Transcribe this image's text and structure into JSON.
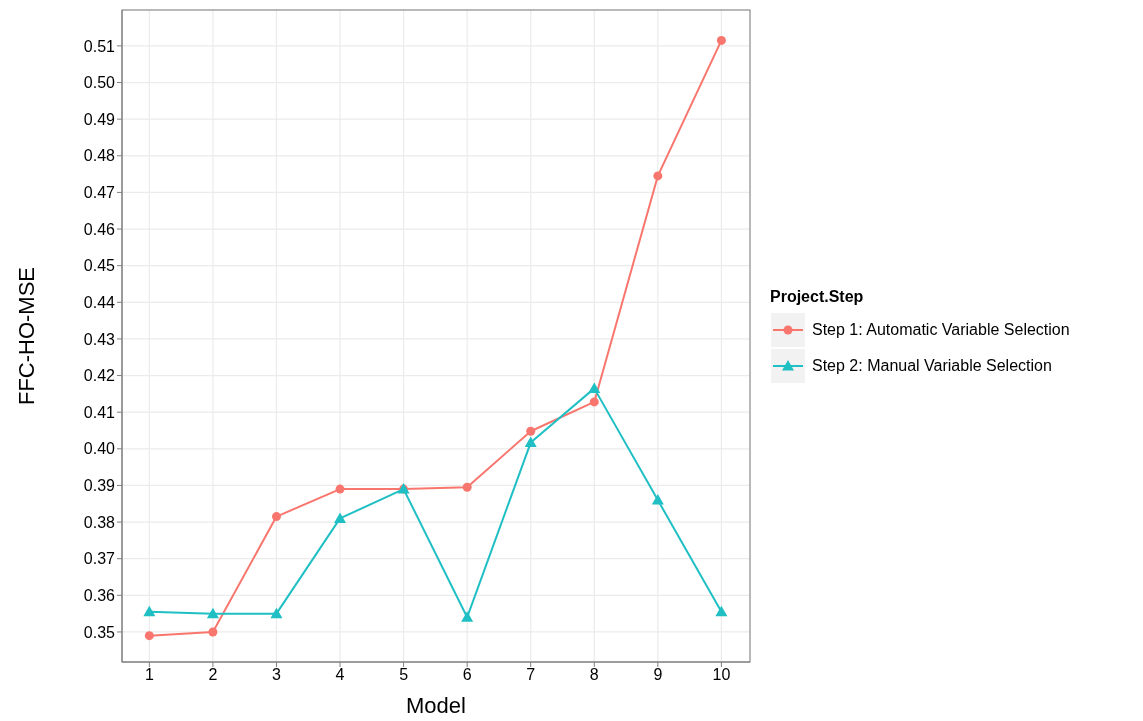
{
  "chart_data": {
    "type": "line",
    "xlabel": "Model",
    "ylabel": "FFC-HO-MSE",
    "legend_title": "Project.Step",
    "legend": "right",
    "grid": true,
    "x": [
      1,
      2,
      3,
      4,
      5,
      6,
      7,
      8,
      9,
      10
    ],
    "xlim": [
      0.57,
      10.45
    ],
    "xticks": [
      1,
      2,
      3,
      4,
      5,
      6,
      7,
      8,
      9,
      10
    ],
    "ylim": [
      0.3418,
      0.5198
    ],
    "yticks": [
      0.35,
      0.36,
      0.37,
      0.38,
      0.39,
      {
        "value": 0.4,
        "label": "0.40"
      },
      0.41,
      0.42,
      0.43,
      0.44,
      0.45,
      0.46,
      0.47,
      0.48,
      0.49,
      {
        "value": 0.5,
        "label": "0.50"
      },
      0.51
    ],
    "series": [
      {
        "name": "Step 1: Automatic Variable Selection",
        "color": "#f8766d",
        "marker": "circle",
        "values": [
          0.349,
          0.35,
          0.3815,
          0.389,
          0.389,
          0.3895,
          0.4048,
          0.4128,
          0.4745,
          0.5115
        ]
      },
      {
        "name": "Step 2: Manual Variable Selection",
        "color": "#1fbfc4",
        "marker": "triangle",
        "values": [
          0.3555,
          0.355,
          0.355,
          0.381,
          0.389,
          0.354,
          0.4017,
          0.4165,
          0.386,
          0.3555
        ]
      }
    ]
  }
}
